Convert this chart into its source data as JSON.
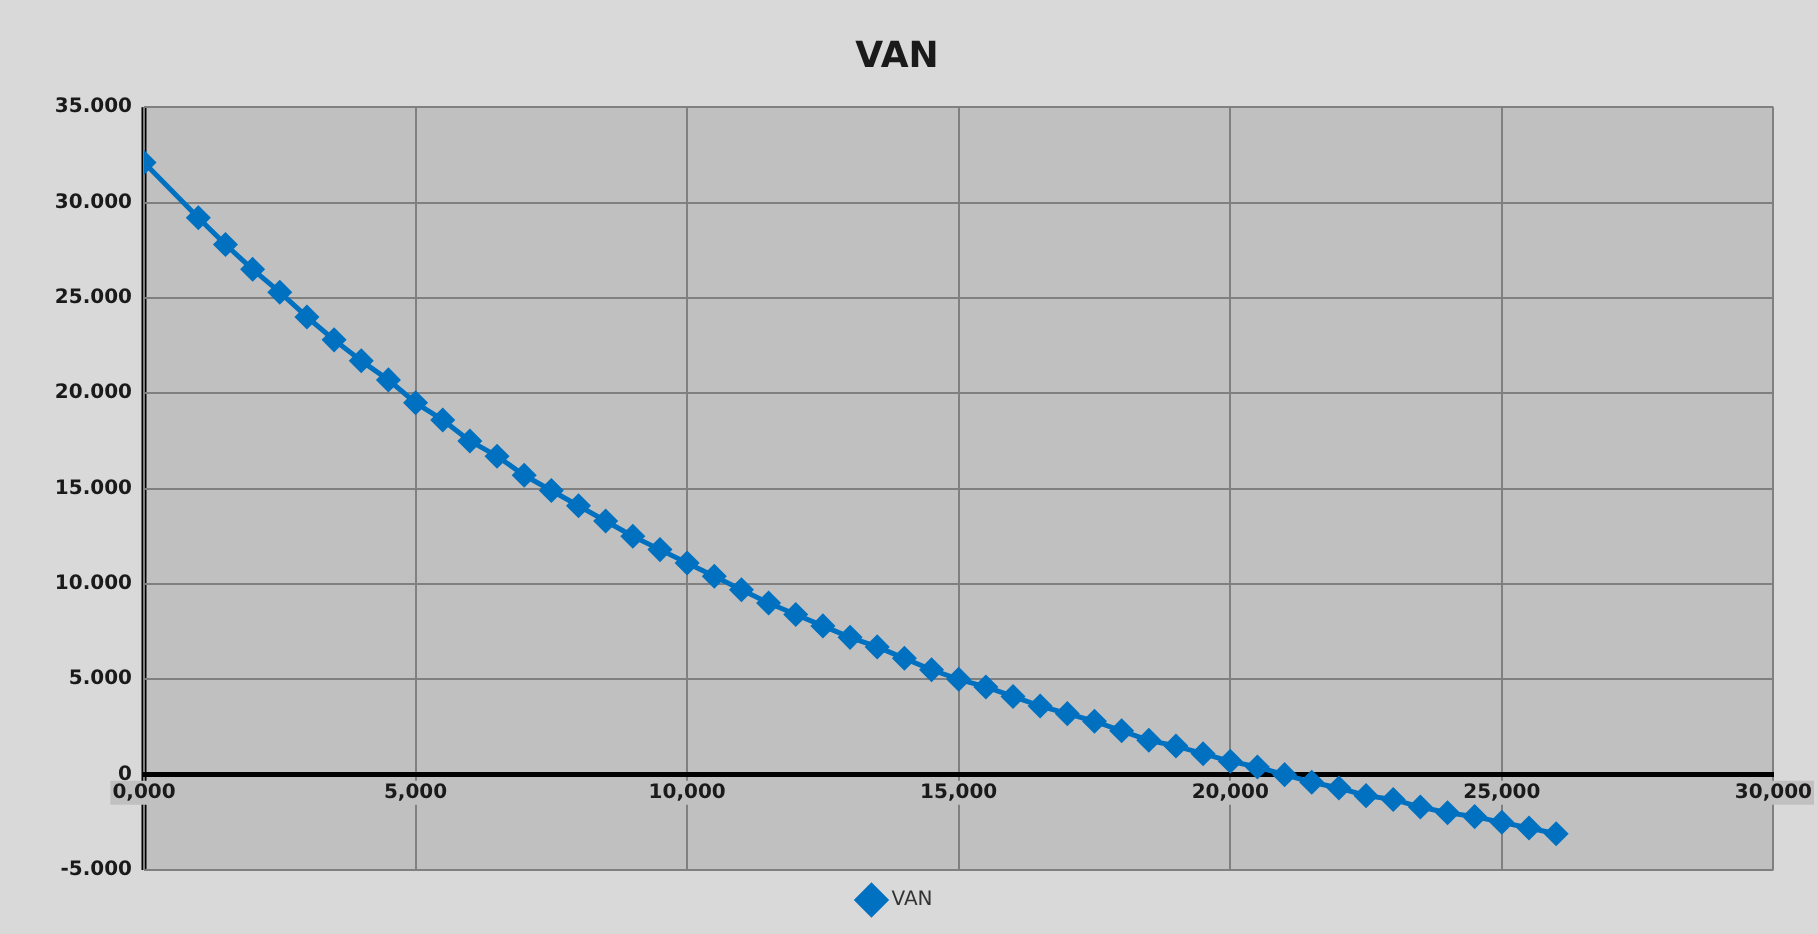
{
  "chart_data": {
    "type": "line",
    "title": "VAN",
    "x": [
      0,
      1,
      1.5,
      2,
      2.5,
      3,
      3.5,
      4,
      4.5,
      5,
      5.5,
      6,
      6.5,
      7,
      7.5,
      8,
      8.5,
      9,
      9.5,
      10,
      10.5,
      11,
      11.5,
      12,
      12.5,
      13,
      13.5,
      14,
      14.5,
      15,
      15.5,
      16,
      16.5,
      17,
      17.5,
      18,
      18.5,
      19,
      19.5,
      20,
      20.5,
      21,
      21.5,
      22,
      22.5,
      23,
      23.5,
      24,
      24.5,
      25,
      25.5,
      26
    ],
    "series": [
      {
        "name": "VAN",
        "color": "#0070c0",
        "values": [
          32100,
          29200,
          27800,
          26500,
          25300,
          24000,
          22800,
          21700,
          20700,
          19500,
          18600,
          17500,
          16700,
          15700,
          14900,
          14100,
          13300,
          12500,
          11800,
          11100,
          10400,
          9700,
          9000,
          8400,
          7800,
          7200,
          6700,
          6100,
          5500,
          5000,
          4600,
          4100,
          3600,
          3200,
          2800,
          2300,
          1800,
          1500,
          1100,
          700,
          400,
          0,
          -400,
          -700,
          -1100,
          -1300,
          -1700,
          -2000,
          -2200,
          -2500,
          -2800,
          -3100
        ]
      }
    ],
    "xlim": [
      0,
      30
    ],
    "xticks": [
      {
        "value": 0,
        "label": "0,000"
      },
      {
        "value": 5,
        "label": "5,000"
      },
      {
        "value": 10,
        "label": "10,000"
      },
      {
        "value": 15,
        "label": "15,000"
      },
      {
        "value": 20,
        "label": "20,000"
      },
      {
        "value": 25,
        "label": "25,000"
      },
      {
        "value": 30,
        "label": "30,000"
      }
    ],
    "ylim": [
      -5000,
      35000
    ],
    "yticks": [
      {
        "value": -5000,
        "label": "-5.000"
      },
      0,
      {
        "value": 5000,
        "label": "5.000"
      },
      {
        "value": 10000,
        "label": "10.000"
      },
      {
        "value": 15000,
        "label": "15.000"
      },
      {
        "value": 20000,
        "label": "20.000"
      },
      {
        "value": 25000,
        "label": "25.000"
      },
      {
        "value": 30000,
        "label": "30.000"
      },
      {
        "value": 35000,
        "label": "35.000"
      }
    ],
    "grid": true,
    "legend": "bottom",
    "marker": "diamond",
    "line_style": "solid"
  }
}
